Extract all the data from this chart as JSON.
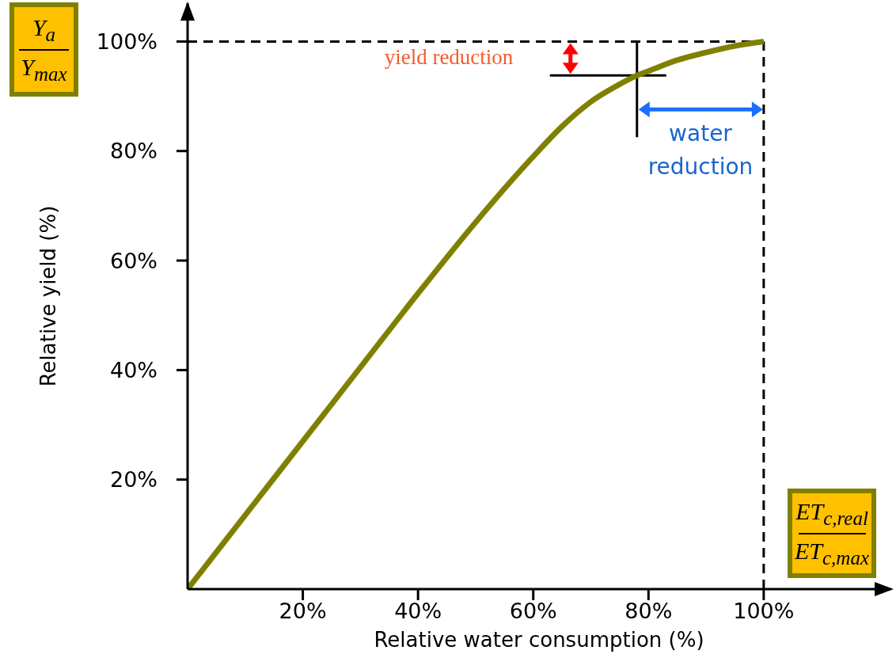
{
  "chart_data": {
    "type": "line",
    "xlabel": "Relative water consumption (%)",
    "ylabel": "Relative yield (%)",
    "xlim": [
      0,
      122
    ],
    "ylim": [
      0,
      107
    ],
    "xticks": [
      {
        "value": 20,
        "label": "20%"
      },
      {
        "value": 40,
        "label": "40%"
      },
      {
        "value": 60,
        "label": "60%"
      },
      {
        "value": 80,
        "label": "80%"
      },
      {
        "value": 100,
        "label": "100%"
      }
    ],
    "yticks": [
      {
        "value": 20,
        "label": "20%"
      },
      {
        "value": 40,
        "label": "40%"
      },
      {
        "value": 60,
        "label": "60%"
      },
      {
        "value": 80,
        "label": "80%"
      },
      {
        "value": 100,
        "label": "100%"
      }
    ],
    "series": [
      {
        "color": "#808000",
        "x": [
          0,
          10,
          20,
          30,
          40,
          50,
          60,
          65,
          70,
          75,
          78,
          80,
          85,
          90,
          95,
          100
        ],
        "values": [
          0,
          13.5,
          27,
          40.5,
          54,
          67,
          79,
          84.5,
          89,
          92.2,
          93.8,
          94.6,
          96.6,
          98,
          99.2,
          100
        ]
      }
    ],
    "ref_lines": [
      {
        "axis": "y",
        "value": 100,
        "color": "#000000",
        "line_style": "dashed"
      },
      {
        "axis": "x",
        "value": 100,
        "color": "#000000",
        "line_style": "dashed"
      },
      {
        "axis": "y",
        "value": 93.8,
        "color": "#000000",
        "line_style": "solid"
      },
      {
        "axis": "x",
        "value": 78,
        "color": "#000000",
        "line_style": "solid"
      }
    ],
    "annotations": [
      "yield reduction",
      "water reduction",
      "Y$_{a}$",
      "Y$_{max}$",
      "ET$_{c,real}$",
      "ET$_{c,max}$"
    ]
  }
}
